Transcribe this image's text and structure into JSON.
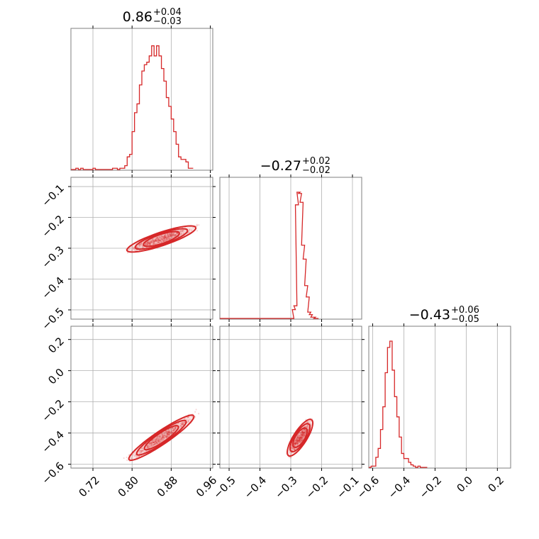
{
  "chart_data": {
    "type": "corner",
    "color": "#d62728",
    "variables": [
      {
        "index": 0,
        "median": "0.86",
        "err_plus": "+0.04",
        "err_minus": "−0.03",
        "range": [
          0.675,
          0.965
        ],
        "ticks": [
          0.72,
          0.8,
          0.88,
          0.96
        ],
        "tick_labels": [
          "0.72",
          "0.80",
          "0.88",
          "0.96"
        ]
      },
      {
        "index": 1,
        "median": "−0.27",
        "err_plus": "+0.02",
        "err_minus": "−0.02",
        "range": [
          -0.53,
          -0.07
        ],
        "ticks": [
          -0.5,
          -0.4,
          -0.3,
          -0.2,
          -0.1
        ],
        "tick_labels": [
          "−0.5",
          "−0.4",
          "−0.3",
          "−0.2",
          "−0.1"
        ]
      },
      {
        "index": 2,
        "median": "−0.43",
        "err_plus": "+0.06",
        "err_minus": "−0.05",
        "range": [
          -0.625,
          0.285
        ],
        "ticks": [
          -0.6,
          -0.4,
          -0.2,
          0.0,
          0.2
        ],
        "tick_labels": [
          "−0.6",
          "−0.4",
          "−0.2",
          "0.0",
          "0.2"
        ]
      }
    ],
    "histograms": [
      {
        "variable": 0,
        "bins": [
          [
            0.675,
            0.0
          ],
          [
            0.68,
            0.0
          ],
          [
            0.685,
            0.01
          ],
          [
            0.69,
            0.0
          ],
          [
            0.695,
            0.01
          ],
          [
            0.7,
            0.0
          ],
          [
            0.705,
            0.0
          ],
          [
            0.71,
            0.0
          ],
          [
            0.715,
            0.0
          ],
          [
            0.72,
            0.01
          ],
          [
            0.725,
            0.0
          ],
          [
            0.73,
            0.0
          ],
          [
            0.735,
            0.0
          ],
          [
            0.74,
            0.0
          ],
          [
            0.745,
            0.0
          ],
          [
            0.75,
            0.0
          ],
          [
            0.755,
            0.0
          ],
          [
            0.76,
            0.01
          ],
          [
            0.765,
            0.01
          ],
          [
            0.77,
            0.0
          ],
          [
            0.775,
            0.01
          ],
          [
            0.78,
            0.01
          ],
          [
            0.785,
            0.03
          ],
          [
            0.79,
            0.1
          ],
          [
            0.795,
            0.12
          ],
          [
            0.8,
            0.3
          ],
          [
            0.805,
            0.45
          ],
          [
            0.81,
            0.52
          ],
          [
            0.815,
            0.67
          ],
          [
            0.82,
            0.78
          ],
          [
            0.825,
            0.83
          ],
          [
            0.83,
            0.85
          ],
          [
            0.835,
            0.9
          ],
          [
            0.84,
            0.98
          ],
          [
            0.845,
            0.9
          ],
          [
            0.85,
            0.98
          ],
          [
            0.855,
            0.9
          ],
          [
            0.86,
            0.8
          ],
          [
            0.865,
            0.7
          ],
          [
            0.87,
            0.57
          ],
          [
            0.875,
            0.5
          ],
          [
            0.88,
            0.4
          ],
          [
            0.885,
            0.3
          ],
          [
            0.89,
            0.2
          ],
          [
            0.895,
            0.1
          ],
          [
            0.9,
            0.08
          ],
          [
            0.905,
            0.08
          ],
          [
            0.91,
            0.06
          ],
          [
            0.915,
            0.01
          ],
          [
            0.92,
            0.01
          ]
        ]
      },
      {
        "variable": 1,
        "bins": [
          [
            -0.53,
            0.0
          ],
          [
            -0.52,
            0.0
          ],
          [
            -0.51,
            0.0
          ],
          [
            -0.5,
            0.0
          ],
          [
            -0.49,
            0.0
          ],
          [
            -0.48,
            0.0
          ],
          [
            -0.47,
            0.0
          ],
          [
            -0.46,
            0.0
          ],
          [
            -0.45,
            0.0
          ],
          [
            -0.44,
            0.0
          ],
          [
            -0.43,
            0.0
          ],
          [
            -0.42,
            0.0
          ],
          [
            -0.41,
            0.0
          ],
          [
            -0.4,
            0.0
          ],
          [
            -0.39,
            0.0
          ],
          [
            -0.38,
            0.0
          ],
          [
            -0.37,
            0.0
          ],
          [
            -0.36,
            0.0
          ],
          [
            -0.35,
            0.0
          ],
          [
            -0.34,
            0.0
          ],
          [
            -0.33,
            0.0
          ],
          [
            -0.32,
            0.0
          ],
          [
            -0.31,
            0.0
          ],
          [
            -0.3,
            0.0
          ],
          [
            -0.295,
            0.07
          ],
          [
            -0.29,
            0.1
          ],
          [
            -0.285,
            0.9
          ],
          [
            -0.28,
            1.0
          ],
          [
            -0.275,
            0.99
          ],
          [
            -0.27,
            0.92
          ],
          [
            -0.265,
            0.58
          ],
          [
            -0.26,
            0.47
          ],
          [
            -0.255,
            0.26
          ],
          [
            -0.25,
            0.17
          ],
          [
            -0.245,
            0.05
          ],
          [
            -0.24,
            0.03
          ],
          [
            -0.235,
            0.01
          ],
          [
            -0.23,
            0.01
          ],
          [
            -0.225,
            0.0
          ],
          [
            -0.22,
            0.0
          ]
        ]
      },
      {
        "variable": 2,
        "bins": [
          [
            -0.625,
            0.0
          ],
          [
            -0.61,
            0.01
          ],
          [
            -0.595,
            0.01
          ],
          [
            -0.58,
            0.08
          ],
          [
            -0.565,
            0.15
          ],
          [
            -0.55,
            0.3
          ],
          [
            -0.535,
            0.48
          ],
          [
            -0.52,
            0.75
          ],
          [
            -0.505,
            0.95
          ],
          [
            -0.49,
            1.0
          ],
          [
            -0.475,
            0.77
          ],
          [
            -0.46,
            0.56
          ],
          [
            -0.445,
            0.4
          ],
          [
            -0.43,
            0.24
          ],
          [
            -0.415,
            0.11
          ],
          [
            -0.4,
            0.07
          ],
          [
            -0.385,
            0.07
          ],
          [
            -0.37,
            0.04
          ],
          [
            -0.355,
            0.02
          ],
          [
            -0.34,
            0.01
          ],
          [
            -0.325,
            0.0
          ],
          [
            -0.31,
            0.01
          ],
          [
            -0.295,
            0.0
          ],
          [
            -0.28,
            0.0
          ],
          [
            -0.265,
            0.0
          ]
        ]
      }
    ],
    "correlations": [
      {
        "x_var": 0,
        "y_var": 1,
        "center": [
          0.86,
          -0.27
        ],
        "trend_x": [
          0.79,
          0.96
        ],
        "trend_y": [
          -0.29,
          -0.2
        ],
        "levels": [
          0.2,
          0.5,
          0.8
        ]
      },
      {
        "x_var": 0,
        "y_var": 2,
        "center": [
          0.86,
          -0.43
        ],
        "trend_x": [
          0.8,
          0.96
        ],
        "trend_y": [
          -0.53,
          -0.19
        ],
        "levels": [
          0.2,
          0.5,
          0.8
        ]
      },
      {
        "x_var": 1,
        "y_var": 2,
        "center": [
          -0.27,
          -0.43
        ],
        "trend_x": [
          -0.3,
          -0.21
        ],
        "trend_y": [
          -0.53,
          -0.25
        ],
        "levels": [
          0.2,
          0.5,
          0.8
        ]
      }
    ],
    "grid": true,
    "title": "",
    "xlabel": "",
    "ylabel": ""
  }
}
